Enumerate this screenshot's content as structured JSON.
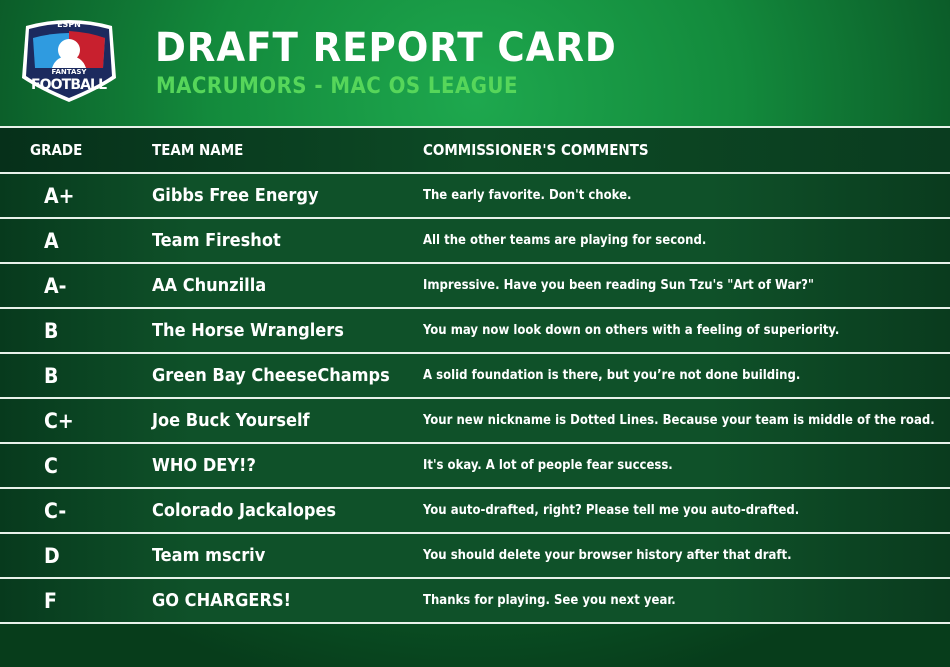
{
  "header": {
    "logo": {
      "brand": "ESPN",
      "line1": "FANTASY",
      "line2": "FOOTBALL"
    },
    "title": "DRAFT REPORT CARD",
    "subtitle": "MACRUMORS - MAC OS LEAGUE"
  },
  "colors": {
    "accent": "#56d65a",
    "background": "#138a3c"
  },
  "table": {
    "columns": [
      "GRADE",
      "TEAM NAME",
      "COMMISSIONER'S COMMENTS"
    ],
    "rows": [
      {
        "grade": "A+",
        "team": "Gibbs Free Energy",
        "comment": "The early favorite. Don't choke."
      },
      {
        "grade": "A",
        "team": "Team Fireshot",
        "comment": "All the other teams are playing for second."
      },
      {
        "grade": "A-",
        "team": "AA Chunzilla",
        "comment": "Impressive.  Have you been reading Sun Tzu's \"Art of War?\""
      },
      {
        "grade": "B",
        "team": "The Horse Wranglers",
        "comment": "You may now look down on others with a feeling of superiority."
      },
      {
        "grade": "B",
        "team": "Green Bay CheeseChamps",
        "comment": "A solid foundation is there, but you’re not done building."
      },
      {
        "grade": "C+",
        "team": "Joe Buck Yourself",
        "comment": "Your new nickname is Dotted Lines. Because your team is middle of the road."
      },
      {
        "grade": "C",
        "team": "WHO DEY!?",
        "comment": "It's okay. A lot of people fear success."
      },
      {
        "grade": "C-",
        "team": "Colorado Jackalopes",
        "comment": "You auto-drafted, right? Please tell me you auto-drafted."
      },
      {
        "grade": "D",
        "team": "Team mscriv",
        "comment": "You should delete your browser history after that draft."
      },
      {
        "grade": "F",
        "team": "GO  CHARGERS!",
        "comment": "Thanks for playing. See you next year."
      }
    ]
  }
}
